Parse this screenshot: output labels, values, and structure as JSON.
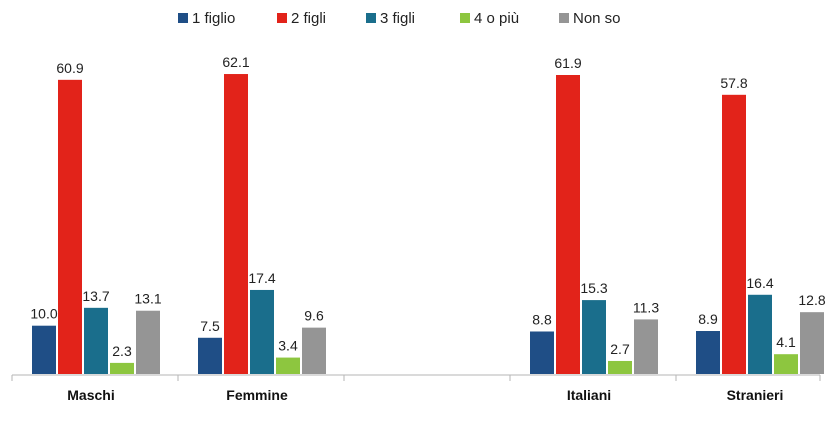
{
  "chart_data": {
    "type": "bar",
    "categories": [
      "Maschi",
      "Femmine",
      "",
      "Italiani",
      "Stranieri"
    ],
    "series": [
      {
        "name": "1 figlio",
        "values": [
          10.0,
          7.5,
          null,
          8.8,
          8.9
        ]
      },
      {
        "name": "2 figli",
        "values": [
          60.9,
          62.1,
          null,
          61.9,
          57.8
        ]
      },
      {
        "name": "3 figli",
        "values": [
          13.7,
          17.4,
          null,
          15.3,
          16.4
        ]
      },
      {
        "name": "4 o più",
        "values": [
          2.3,
          3.4,
          null,
          2.7,
          4.1
        ]
      },
      {
        "name": "Non so",
        "values": [
          13.1,
          9.6,
          null,
          11.3,
          12.8
        ]
      }
    ],
    "colors": [
      "#1f4e86",
      "#e2231a",
      "#1a6e8c",
      "#8dc63f",
      "#959595"
    ],
    "ylim": [
      0,
      70
    ],
    "legend_position": "top",
    "data_labels": true,
    "grid": false
  }
}
